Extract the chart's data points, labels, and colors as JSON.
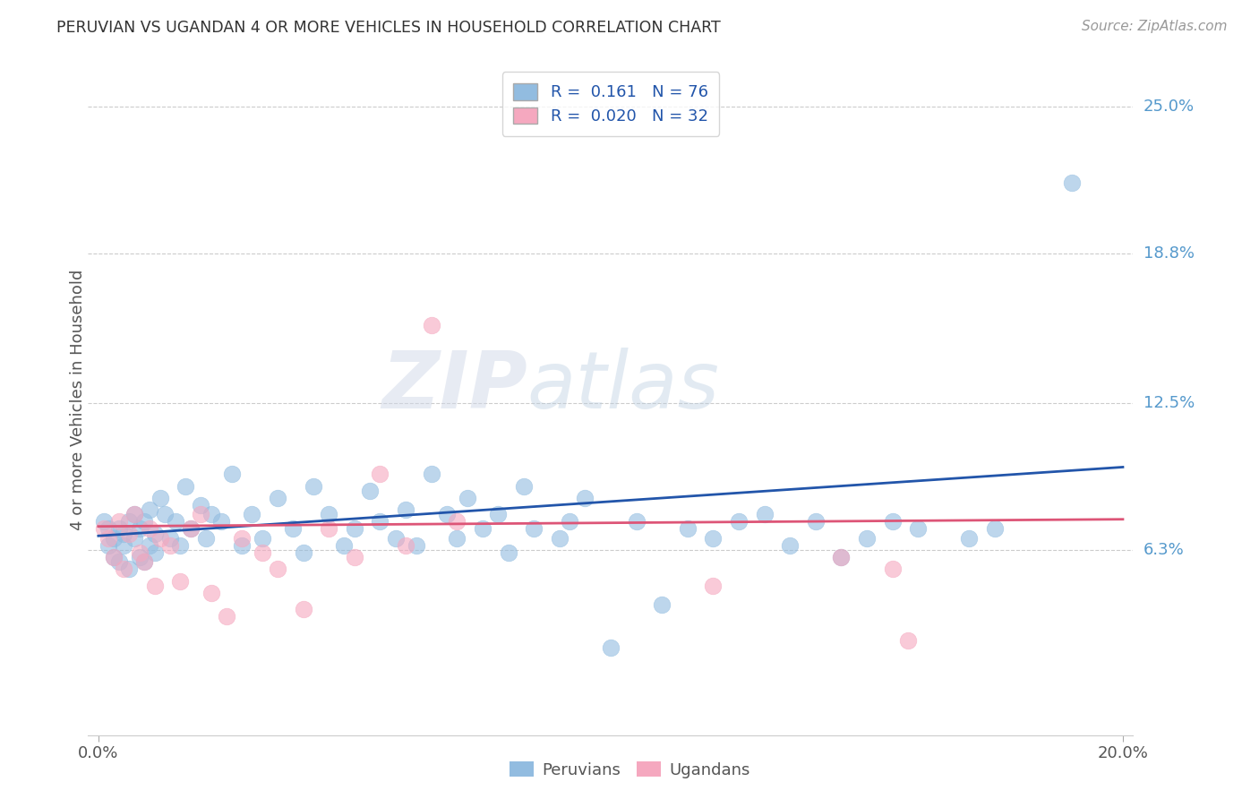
{
  "title": "PERUVIAN VS UGANDAN 4 OR MORE VEHICLES IN HOUSEHOLD CORRELATION CHART",
  "source": "Source: ZipAtlas.com",
  "ylabel": "4 or more Vehicles in Household",
  "ytick_labels": [
    "6.3%",
    "12.5%",
    "18.8%",
    "25.0%"
  ],
  "ytick_values": [
    0.063,
    0.125,
    0.188,
    0.25
  ],
  "xlim": [
    0.0,
    0.2
  ],
  "ylim": [
    -0.015,
    0.268
  ],
  "peruvian_color": "#92bce0",
  "ugandan_color": "#f5a8bf",
  "peruvian_line_color": "#2255aa",
  "ugandan_line_color": "#dd5577",
  "ytick_color": "#5599cc",
  "watermark_zip": "ZIP",
  "watermark_atlas": "atlas",
  "peru_line_x0": 0.0,
  "peru_line_y0": 0.069,
  "peru_line_x1": 0.2,
  "peru_line_y1": 0.098,
  "uganda_line_x0": 0.0,
  "uganda_line_y0": 0.073,
  "uganda_line_x1": 0.2,
  "uganda_line_y1": 0.076,
  "peruvian_pts_x": [
    0.001,
    0.002,
    0.002,
    0.003,
    0.003,
    0.004,
    0.004,
    0.005,
    0.005,
    0.006,
    0.006,
    0.007,
    0.007,
    0.008,
    0.008,
    0.009,
    0.009,
    0.01,
    0.01,
    0.011,
    0.011,
    0.012,
    0.013,
    0.014,
    0.015,
    0.016,
    0.017,
    0.018,
    0.02,
    0.021,
    0.022,
    0.024,
    0.026,
    0.028,
    0.03,
    0.032,
    0.035,
    0.038,
    0.04,
    0.042,
    0.045,
    0.048,
    0.05,
    0.053,
    0.055,
    0.058,
    0.06,
    0.062,
    0.065,
    0.068,
    0.07,
    0.072,
    0.075,
    0.078,
    0.08,
    0.083,
    0.085,
    0.09,
    0.092,
    0.095,
    0.1,
    0.105,
    0.11,
    0.115,
    0.12,
    0.125,
    0.13,
    0.135,
    0.14,
    0.145,
    0.15,
    0.155,
    0.16,
    0.17,
    0.175,
    0.19
  ],
  "peruvian_pts_y": [
    0.075,
    0.072,
    0.065,
    0.068,
    0.06,
    0.072,
    0.058,
    0.065,
    0.07,
    0.075,
    0.055,
    0.068,
    0.078,
    0.06,
    0.072,
    0.058,
    0.075,
    0.065,
    0.08,
    0.07,
    0.062,
    0.085,
    0.078,
    0.068,
    0.075,
    0.065,
    0.09,
    0.072,
    0.082,
    0.068,
    0.078,
    0.075,
    0.095,
    0.065,
    0.078,
    0.068,
    0.085,
    0.072,
    0.062,
    0.09,
    0.078,
    0.065,
    0.072,
    0.088,
    0.075,
    0.068,
    0.08,
    0.065,
    0.095,
    0.078,
    0.068,
    0.085,
    0.072,
    0.078,
    0.062,
    0.09,
    0.072,
    0.068,
    0.075,
    0.085,
    0.022,
    0.075,
    0.04,
    0.072,
    0.068,
    0.075,
    0.078,
    0.065,
    0.075,
    0.06,
    0.068,
    0.075,
    0.072,
    0.068,
    0.072,
    0.218
  ],
  "ugandan_pts_x": [
    0.001,
    0.002,
    0.003,
    0.004,
    0.005,
    0.006,
    0.007,
    0.008,
    0.009,
    0.01,
    0.011,
    0.012,
    0.014,
    0.016,
    0.018,
    0.02,
    0.022,
    0.025,
    0.028,
    0.032,
    0.035,
    0.04,
    0.045,
    0.05,
    0.055,
    0.06,
    0.065,
    0.07,
    0.12,
    0.145,
    0.155,
    0.158
  ],
  "ugandan_pts_y": [
    0.072,
    0.068,
    0.06,
    0.075,
    0.055,
    0.07,
    0.078,
    0.062,
    0.058,
    0.072,
    0.048,
    0.068,
    0.065,
    0.05,
    0.072,
    0.078,
    0.045,
    0.035,
    0.068,
    0.062,
    0.055,
    0.038,
    0.072,
    0.06,
    0.095,
    0.065,
    0.158,
    0.075,
    0.048,
    0.06,
    0.055,
    0.025
  ]
}
